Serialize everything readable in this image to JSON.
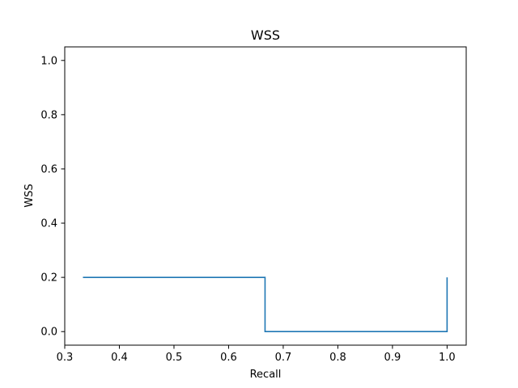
{
  "chart_data": {
    "type": "line",
    "title": "WSS",
    "xlabel": "Recall",
    "ylabel": "WSS",
    "xlim": [
      0.3,
      1.035
    ],
    "ylim": [
      -0.05,
      1.05
    ],
    "xticks": [
      0.3,
      0.4,
      0.5,
      0.6,
      0.7,
      0.8,
      0.9,
      1.0
    ],
    "xtick_labels": [
      "0.3",
      "0.4",
      "0.5",
      "0.6",
      "0.7",
      "0.8",
      "0.9",
      "1.0"
    ],
    "yticks": [
      0.0,
      0.2,
      0.4,
      0.6,
      0.8,
      1.0
    ],
    "ytick_labels": [
      "0.0",
      "0.2",
      "0.4",
      "0.6",
      "0.8",
      "1.0"
    ],
    "grid": false,
    "legend": "none",
    "series": [
      {
        "color": "#1f77b4",
        "step": "post",
        "x": [
          0.3333,
          0.6667,
          0.6667,
          1.0,
          1.0
        ],
        "y": [
          0.2,
          0.2,
          0.0,
          0.0,
          0.2
        ]
      }
    ]
  }
}
